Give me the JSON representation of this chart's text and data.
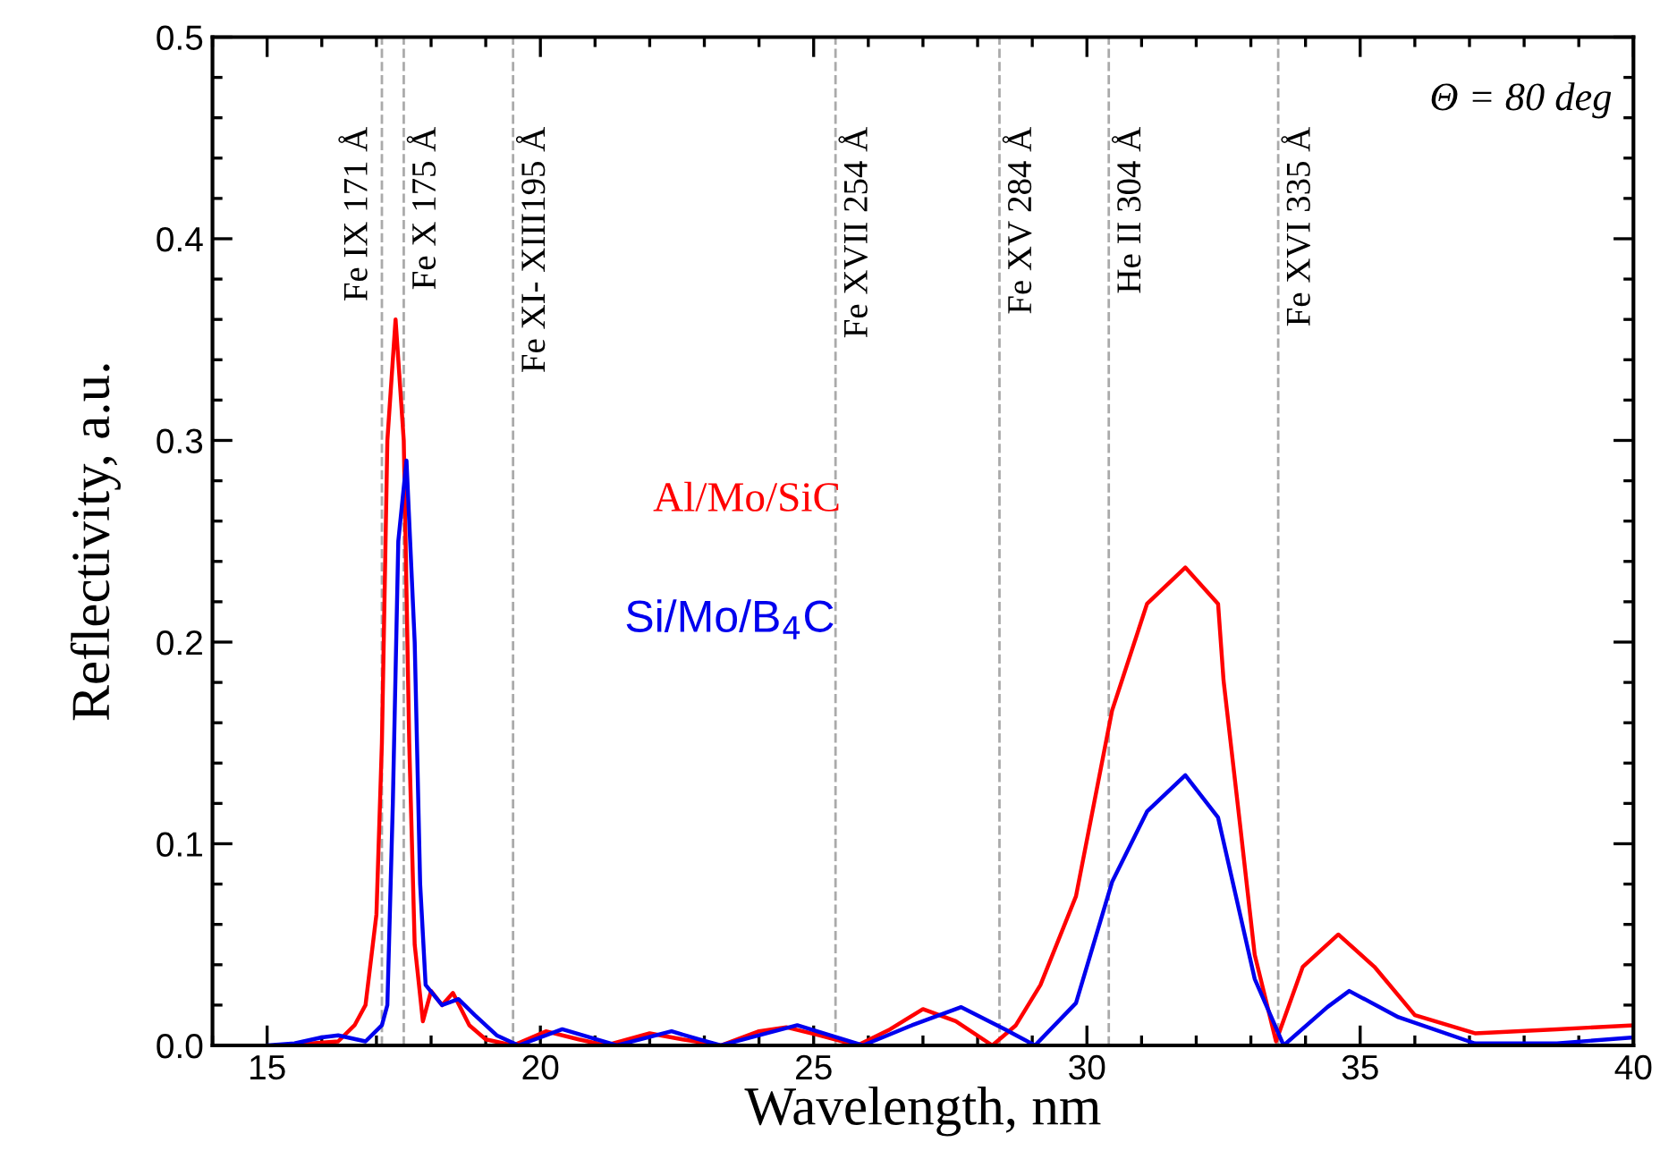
{
  "chart_data": {
    "type": "line",
    "xlabel": "Wavelength, nm",
    "ylabel": "Reflectivity, a.u.",
    "xlim": [
      14,
      40
    ],
    "xticks": [
      15,
      20,
      25,
      30,
      35,
      40
    ],
    "ylim": [
      0,
      0.5
    ],
    "yticks": [
      {
        "value": 0,
        "label": "0.0"
      },
      0.1,
      0.2,
      0.3,
      0.4,
      0.5
    ],
    "grid": false,
    "legend": false,
    "line_style": "solid",
    "marker": "none",
    "series": [
      {
        "name": "Al/Mo/SiC",
        "color": "#ff0000",
        "x": [
          15.2,
          15.8,
          16.3,
          16.6,
          16.8,
          17.0,
          17.1,
          17.2,
          17.35,
          17.5,
          17.6,
          17.7,
          17.85,
          18.0,
          18.2,
          18.4,
          18.7,
          19.0,
          19.5,
          20.1,
          20.7,
          21.2,
          22.0,
          22.6,
          23.3,
          24.0,
          24.5,
          25.1,
          25.8,
          26.4,
          27.0,
          27.6,
          28.27,
          28.7,
          29.15,
          29.8,
          30.46,
          31.1,
          31.8,
          32.4,
          32.5,
          32.8,
          33.07,
          33.46,
          33.95,
          34.6,
          35.26,
          36.0,
          37.1,
          38.6,
          40.0
        ],
        "values": [
          0,
          0.001,
          0.002,
          0.01,
          0.02,
          0.065,
          0.15,
          0.3,
          0.36,
          0.3,
          0.15,
          0.05,
          0.012,
          0.027,
          0.02,
          0.026,
          0.01,
          0.003,
          0,
          0.007,
          0.003,
          0,
          0.006,
          0.003,
          0,
          0.007,
          0.009,
          0.005,
          0,
          0.008,
          0.018,
          0.012,
          0,
          0.01,
          0.03,
          0.074,
          0.166,
          0.219,
          0.237,
          0.219,
          0.181,
          0.11,
          0.045,
          0.002,
          0.039,
          0.055,
          0.039,
          0.015,
          0.006,
          0.008,
          0.01
        ]
      },
      {
        "name": "Si/Mo/B$_{4}$C",
        "color": "#0000ee",
        "x": [
          15.0,
          15.5,
          16.0,
          16.3,
          16.8,
          17.1,
          17.2,
          17.3,
          17.4,
          17.55,
          17.7,
          17.8,
          17.9,
          18.2,
          18.5,
          18.8,
          19.2,
          19.6,
          20.4,
          20.9,
          21.4,
          22.4,
          22.9,
          23.3,
          24.0,
          24.7,
          25.3,
          25.9,
          26.8,
          27.7,
          28.5,
          29.05,
          29.8,
          30.46,
          31.1,
          31.8,
          32.4,
          33.07,
          33.6,
          34.4,
          34.8,
          35.7,
          37.1,
          38.6,
          40.0
        ],
        "values": [
          0,
          0.001,
          0.004,
          0.005,
          0.002,
          0.01,
          0.02,
          0.12,
          0.25,
          0.29,
          0.2,
          0.08,
          0.03,
          0.02,
          0.023,
          0.015,
          0.005,
          0,
          0.008,
          0.004,
          0,
          0.007,
          0.003,
          0,
          0.005,
          0.01,
          0.005,
          0,
          0.01,
          0.019,
          0.008,
          0,
          0.021,
          0.081,
          0.116,
          0.134,
          0.113,
          0.033,
          0,
          0.019,
          0.027,
          0.014,
          0.001,
          0.001,
          0.004
        ]
      }
    ],
    "ref_lines": [
      {
        "axis": "x",
        "value": 17.1,
        "label": "Fe IX 171 Å",
        "color": "#aaaaaa",
        "line_style": "dashed"
      },
      {
        "axis": "x",
        "value": 17.5,
        "label": "Fe X 175 Å",
        "color": "#aaaaaa",
        "line_style": "dashed"
      },
      {
        "axis": "x",
        "value": 19.5,
        "label": "Fe XI- XIII195 Å",
        "color": "#aaaaaa",
        "line_style": "dashed"
      },
      {
        "axis": "x",
        "value": 25.4,
        "label": "Fe XVII 254 Å",
        "color": "#aaaaaa",
        "line_style": "dashed"
      },
      {
        "axis": "x",
        "value": 28.4,
        "label": "Fe XV 284 Å",
        "color": "#aaaaaa",
        "line_style": "dashed"
      },
      {
        "axis": "x",
        "value": 30.4,
        "label": "He II 304 Å",
        "color": "#aaaaaa",
        "line_style": "dashed"
      },
      {
        "axis": "x",
        "value": 33.5,
        "label": "Fe XVI 335 Å",
        "color": "#aaaaaa",
        "line_style": "dashed"
      }
    ],
    "annotations": [
      "Θ = 80 deg"
    ]
  }
}
